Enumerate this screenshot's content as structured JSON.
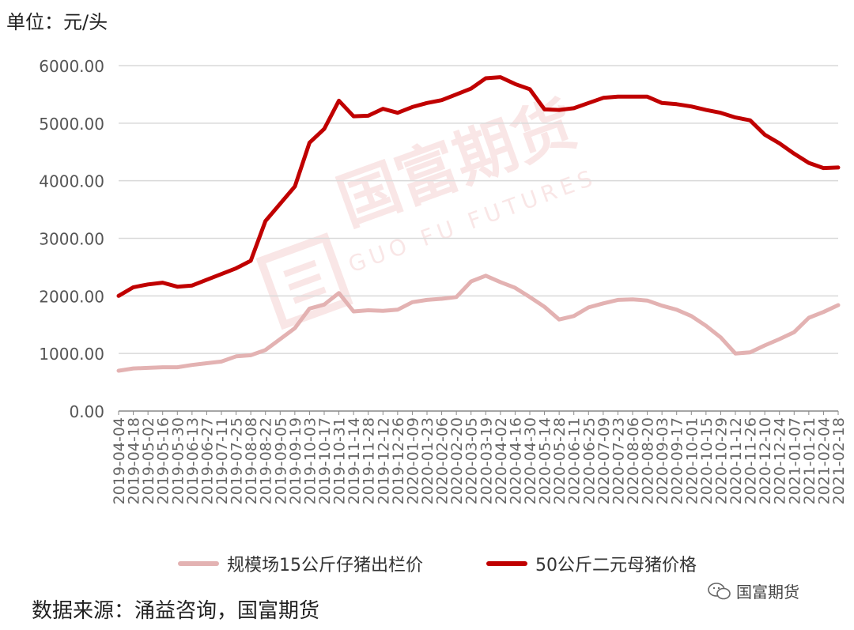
{
  "unit_label": "单位：元/头",
  "source_note": "数据来源：涌益咨询，国富期货",
  "wechat_label": "国富期货",
  "watermark": {
    "text_cn": "国富期货",
    "text_en": "GUO FU FUTURES"
  },
  "colors": {
    "sow": "#c00000",
    "piglet": "#e3b2b2",
    "grid": "#d9d9d9",
    "axis": "#888888"
  },
  "chart_data": {
    "type": "line",
    "ylim": [
      0,
      6000
    ],
    "yticks": [
      "0.00",
      "1000.00",
      "2000.00",
      "3000.00",
      "4000.00",
      "5000.00",
      "6000.00"
    ],
    "grid": true,
    "legend_position": "bottom",
    "x": [
      "2019-04-04",
      "2019-04-18",
      "2019-05-02",
      "2019-05-16",
      "2019-05-30",
      "2019-06-13",
      "2019-06-27",
      "2019-07-11",
      "2019-07-25",
      "2019-08-08",
      "2019-08-22",
      "2019-09-05",
      "2019-09-19",
      "2019-10-03",
      "2019-10-17",
      "2019-10-31",
      "2019-11-14",
      "2019-11-28",
      "2019-12-12",
      "2019-12-26",
      "2020-01-09",
      "2020-01-23",
      "2020-02-06",
      "2020-02-20",
      "2020-03-05",
      "2020-03-19",
      "2020-04-02",
      "2020-04-16",
      "2020-04-30",
      "2020-05-14",
      "2020-05-28",
      "2020-06-11",
      "2020-06-25",
      "2020-07-09",
      "2020-07-23",
      "2020-08-06",
      "2020-08-20",
      "2020-09-03",
      "2020-09-17",
      "2020-10-01",
      "2020-10-15",
      "2020-10-29",
      "2020-11-12",
      "2020-11-26",
      "2020-12-10",
      "2020-12-24",
      "2021-01-07",
      "2021-01-21",
      "2021-02-04",
      "2021-02-18"
    ],
    "x_tick_labels": [
      "2019-04-04",
      "2019-04-18",
      "2019-05-02",
      "2019-05-16",
      "2019-05-30",
      "2019-06-13",
      "2019-06-27",
      "2019-07-11",
      "2019-07-25",
      "2019-08-08",
      "2019-08-22",
      "2019-09-05",
      "2019-09-19",
      "2019-10-03",
      "2019-10-17",
      "2019-10-31",
      "2019-11-14",
      "2019-11-28",
      "2019-12-12",
      "2019-12-26",
      "2020-01-09",
      "2020-01-23",
      "2020-02-06",
      "2020-02-20",
      "2020-03-05",
      "2020-03-19",
      "2020-04-02",
      "2020-04-16",
      "2020-04-30",
      "2020-05-14",
      "2020-05-28",
      "2020-06-11",
      "2020-06-25",
      "2020-07-09",
      "2020-07-23",
      "2020-08-06",
      "2020-08-20",
      "2020-09-03",
      "2020-09-17",
      "2020-10-01",
      "2020-10-15",
      "2020-10-29",
      "2020-11-12",
      "2020-11-26",
      "2020-12-10",
      "2020-12-24",
      "2021-01-07",
      "2021-01-21",
      "2021-02-04",
      "2021-02-18"
    ],
    "series": [
      {
        "name": "规模场15公斤仔猪出栏价",
        "color": "#e3b2b2",
        "values": [
          700,
          740,
          750,
          760,
          760,
          800,
          830,
          860,
          950,
          970,
          1060,
          1250,
          1440,
          1780,
          1850,
          2050,
          1730,
          1750,
          1740,
          1760,
          1890,
          1930,
          1950,
          1980,
          2250,
          2350,
          2240,
          2140,
          1980,
          1810,
          1590,
          1650,
          1800,
          1870,
          1930,
          1940,
          1920,
          1830,
          1760,
          1650,
          1480,
          1280,
          1000,
          1020,
          1140,
          1250,
          1370,
          1620,
          1720,
          1840
        ]
      },
      {
        "name": "50公斤二元母猪价格",
        "color": "#c00000",
        "values": [
          2000,
          2150,
          2200,
          2230,
          2160,
          2180,
          2280,
          2380,
          2480,
          2610,
          3300,
          3600,
          3900,
          4660,
          4900,
          5390,
          5120,
          5130,
          5250,
          5180,
          5280,
          5350,
          5400,
          5500,
          5600,
          5780,
          5800,
          5680,
          5590,
          5240,
          5230,
          5260,
          5350,
          5440,
          5460,
          5460,
          5460,
          5350,
          5330,
          5290,
          5230,
          5180,
          5100,
          5050,
          4800,
          4650,
          4470,
          4310,
          4220,
          4230
        ]
      }
    ]
  }
}
